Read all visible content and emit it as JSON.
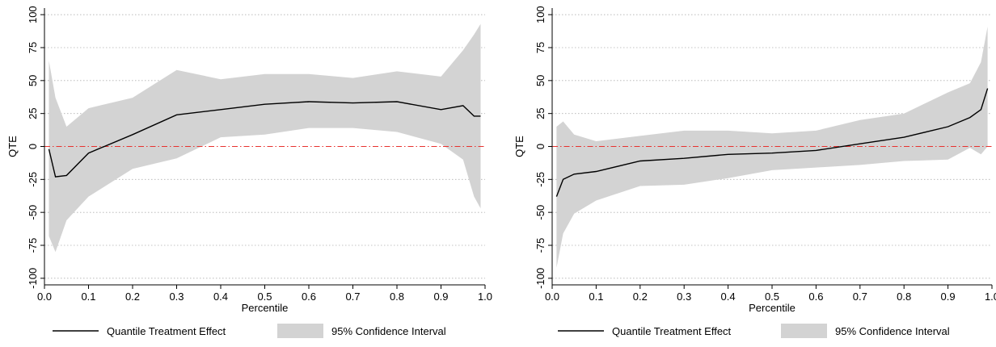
{
  "colors": {
    "effect_line": "#000000",
    "ci_band": "#d3d3d3",
    "zero_line": "#e8322f",
    "grid": "#b0b0b0"
  },
  "chart_data": [
    {
      "type": "area",
      "xlabel": "Percentile",
      "ylabel": "QTE",
      "xlim": [
        0,
        1
      ],
      "ylim": [
        -105,
        105
      ],
      "xticks": [
        "0.0",
        "0.1",
        "0.2",
        "0.3",
        "0.4",
        "0.5",
        "0.6",
        "0.7",
        "0.8",
        "0.9",
        "1.0"
      ],
      "yticks": [
        "-100",
        "-75",
        "-50",
        "-25",
        "0",
        "25",
        "50",
        "75",
        "100"
      ],
      "grid": true,
      "reference_line": 0,
      "legend": {
        "position": "bottom",
        "effect_label": "Quantile Treatment Effect",
        "ci_label": "95% Confidence Interval"
      },
      "x": [
        0.01,
        0.025,
        0.05,
        0.1,
        0.2,
        0.3,
        0.4,
        0.5,
        0.6,
        0.7,
        0.8,
        0.9,
        0.95,
        0.975,
        0.99
      ],
      "series": [
        {
          "name": "Quantile Treatment Effect",
          "values": [
            -2,
            -23,
            -22,
            -5,
            9,
            24,
            28,
            32,
            34,
            33,
            34,
            28,
            31,
            23,
            23
          ]
        },
        {
          "name": "95% Confidence Interval",
          "upper": [
            65,
            37,
            15,
            29,
            37,
            58,
            51,
            55,
            55,
            52,
            57,
            53,
            73,
            85,
            93
          ],
          "lower": [
            -68,
            -80,
            -56,
            -38,
            -17,
            -9,
            7,
            9,
            14,
            14,
            11,
            2,
            -10,
            -38,
            -47
          ]
        }
      ]
    },
    {
      "type": "area",
      "xlabel": "Percentile",
      "ylabel": "QTE",
      "xlim": [
        0,
        1
      ],
      "ylim": [
        -105,
        105
      ],
      "xticks": [
        "0.0",
        "0.1",
        "0.2",
        "0.3",
        "0.4",
        "0.5",
        "0.6",
        "0.7",
        "0.8",
        "0.9",
        "1.0"
      ],
      "yticks": [
        "-100",
        "-75",
        "-50",
        "-25",
        "0",
        "25",
        "50",
        "75",
        "100"
      ],
      "grid": true,
      "reference_line": 0,
      "legend": {
        "position": "bottom",
        "effect_label": "Quantile Treatment Effect",
        "ci_label": "95% Confidence Interval"
      },
      "x": [
        0.01,
        0.025,
        0.05,
        0.1,
        0.2,
        0.3,
        0.4,
        0.5,
        0.6,
        0.7,
        0.8,
        0.9,
        0.95,
        0.975,
        0.99
      ],
      "series": [
        {
          "name": "Quantile Treatment Effect",
          "values": [
            -38,
            -25,
            -21,
            -19,
            -11,
            -9,
            -6,
            -5,
            -3,
            2,
            7,
            15,
            22,
            28,
            44
          ]
        },
        {
          "name": "95% Confidence Interval",
          "upper": [
            15,
            19,
            9,
            4,
            8,
            12,
            12,
            10,
            12,
            20,
            25,
            41,
            48,
            64,
            91
          ],
          "lower": [
            -92,
            -66,
            -51,
            -41,
            -30,
            -29,
            -24,
            -18,
            -16,
            -14,
            -11,
            -10,
            -1,
            -6,
            0
          ]
        }
      ]
    }
  ]
}
